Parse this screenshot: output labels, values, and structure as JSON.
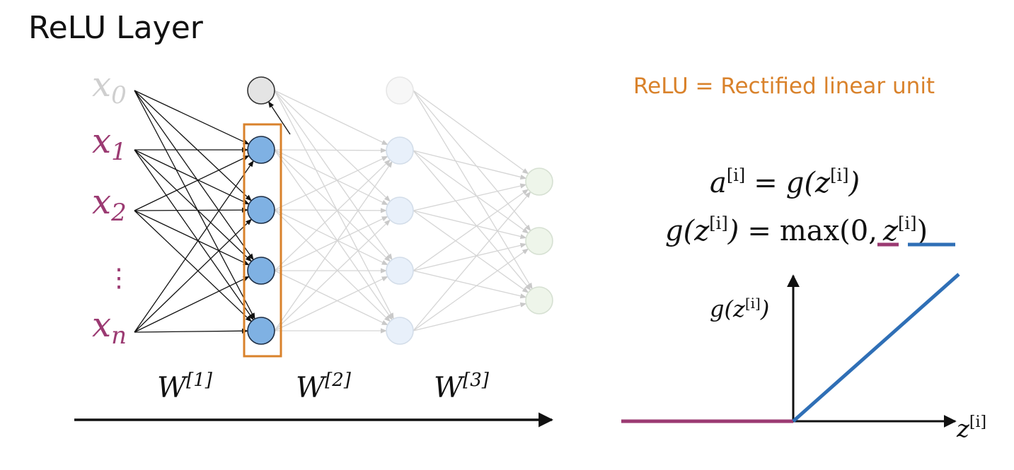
{
  "title": "ReLU Layer",
  "subtitle": "ReLU = Rectified linear unit",
  "colors": {
    "purple": "#9b3a72",
    "blue": "#2f6fb6",
    "orange": "#d9822b",
    "node_blue": "#7fb1e3",
    "faded_line": "#d5d5d5"
  },
  "network": {
    "inputs": [
      {
        "sym": "x",
        "sub": "0"
      },
      {
        "sym": "x",
        "sub": "1"
      },
      {
        "sym": "x",
        "sub": "2"
      },
      {
        "sym": "x",
        "sub": "n"
      }
    ],
    "ellipsis": "⋮",
    "weights": [
      {
        "sym": "W",
        "sup": "[1]"
      },
      {
        "sym": "W",
        "sup": "[2]"
      },
      {
        "sym": "W",
        "sup": "[3]"
      }
    ]
  },
  "equations": {
    "eq1": {
      "lhs_a": "a",
      "sup": "[i]",
      "eq": "=",
      "g": "g(",
      "z": "z",
      "close": ")"
    },
    "eq2": {
      "g": "g(",
      "z": "z",
      "sup": "[i]",
      "close": ")",
      "eq": "=",
      "max": "max(",
      "zero": "0",
      "comma": ",",
      "z2": "z",
      "sup2": "[i]",
      "close2": ")"
    }
  },
  "graph": {
    "ylabel": {
      "g": "g(",
      "z": "z",
      "sup": "[i]",
      "close": ")"
    },
    "xlabel": {
      "z": "z",
      "sup": "[i]"
    }
  }
}
